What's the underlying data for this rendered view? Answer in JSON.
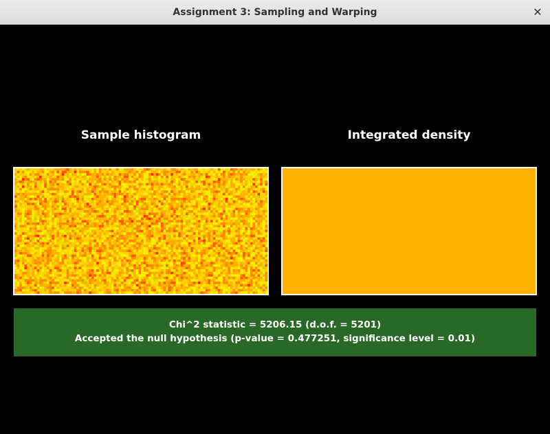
{
  "window": {
    "title": "Assignment 3: Sampling and Warping",
    "close_glyph": "✕"
  },
  "panels": {
    "left_title": "Sample histogram",
    "right_title": "Integrated density"
  },
  "colors": {
    "density_fill": "#ffb300",
    "result_background": "#296928",
    "histogram_palette": [
      "#ff2a00",
      "#ff5a00",
      "#ff8c00",
      "#ffb000",
      "#ffd200",
      "#ffee00",
      "#e8f000",
      "#c0e800"
    ]
  },
  "result": {
    "statistic_line": "Chi^2 statistic = 5206.15 (d.o.f. = 5201)",
    "verdict_line": "Accepted the null hypothesis (p-value = 0.477251, significance level = 0.01)"
  }
}
